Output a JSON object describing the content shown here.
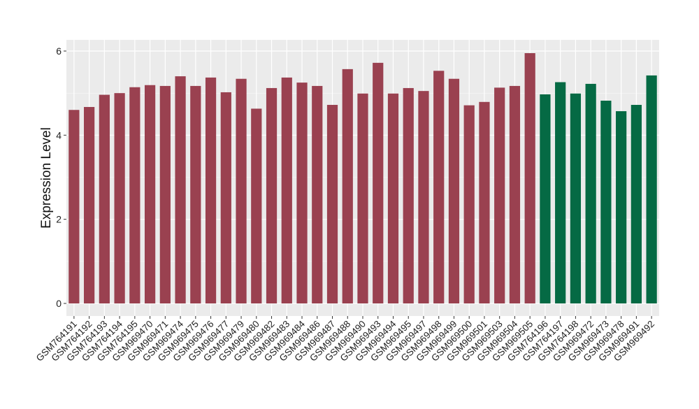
{
  "chart_data": {
    "type": "bar",
    "title": "",
    "xlabel": "",
    "ylabel": "Expression Level",
    "ylim": [
      0,
      6.3
    ],
    "y_ticks": [
      0,
      2,
      4,
      6
    ],
    "grid": true,
    "legend": "none",
    "colors": {
      "panel_background": "#ebebeb",
      "grid_major": "#ffffff",
      "group_1": "#9a4150",
      "group_2": "#056a44"
    },
    "categories": [
      "GSM764191",
      "GSM764192",
      "GSM764193",
      "GSM764194",
      "GSM764195",
      "GSM969470",
      "GSM969471",
      "GSM969474",
      "GSM969475",
      "GSM969476",
      "GSM969477",
      "GSM969479",
      "GSM969480",
      "GSM969482",
      "GSM969483",
      "GSM969484",
      "GSM969486",
      "GSM969487",
      "GSM969488",
      "GSM969490",
      "GSM969493",
      "GSM969494",
      "GSM969495",
      "GSM969497",
      "GSM969498",
      "GSM969499",
      "GSM969500",
      "GSM969501",
      "GSM969503",
      "GSM969504",
      "GSM969505",
      "GSM764196",
      "GSM764197",
      "GSM764198",
      "GSM969472",
      "GSM969473",
      "GSM969478",
      "GSM969491",
      "GSM969492"
    ],
    "values": [
      4.6,
      4.67,
      4.96,
      5.0,
      5.14,
      5.19,
      5.17,
      5.4,
      5.17,
      5.37,
      5.02,
      5.34,
      4.63,
      5.12,
      5.37,
      5.25,
      5.17,
      4.72,
      5.57,
      4.99,
      5.72,
      4.99,
      5.12,
      5.05,
      5.53,
      5.34,
      4.71,
      4.79,
      5.13,
      5.17,
      5.95,
      4.97,
      5.26,
      4.99,
      5.22,
      4.82,
      4.57,
      4.72,
      5.42
    ],
    "groups": [
      1,
      1,
      1,
      1,
      1,
      1,
      1,
      1,
      1,
      1,
      1,
      1,
      1,
      1,
      1,
      1,
      1,
      1,
      1,
      1,
      1,
      1,
      1,
      1,
      1,
      1,
      1,
      1,
      1,
      1,
      1,
      2,
      2,
      2,
      2,
      2,
      2,
      2,
      2
    ]
  }
}
